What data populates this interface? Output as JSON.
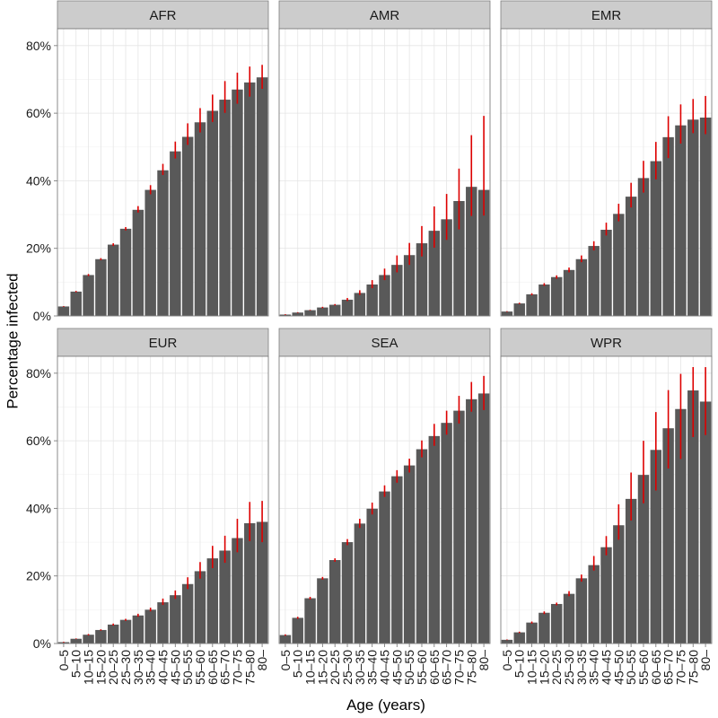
{
  "chart_data": {
    "type": "bar",
    "xlabel": "Age (years)",
    "ylabel": "Percentage infected",
    "ylim": [
      0,
      85
    ],
    "yticks": [
      0,
      20,
      40,
      60,
      80
    ],
    "ytick_labels": [
      "0%",
      "20%",
      "40%",
      "60%",
      "80%"
    ],
    "categories": [
      "0–5",
      "5–10",
      "10–15",
      "15–20",
      "20–25",
      "25–30",
      "30–35",
      "35–40",
      "40–45",
      "45–50",
      "50–55",
      "55–60",
      "60–65",
      "65–70",
      "70–75",
      "75–80",
      "80–"
    ],
    "grid": true,
    "error_bar_color": "#dd0000",
    "bar_color": "#595959",
    "panels": [
      {
        "name": "AFR",
        "values": [
          2.8,
          7.2,
          12.1,
          16.8,
          21.1,
          25.8,
          31.4,
          37.3,
          43.1,
          48.7,
          53.0,
          57.3,
          60.7,
          64.0,
          67.0,
          69.1,
          70.6
        ],
        "lower": [
          2.7,
          7.0,
          11.8,
          16.5,
          20.7,
          25.3,
          30.6,
          36.0,
          41.7,
          46.6,
          50.6,
          54.3,
          57.4,
          60.1,
          62.8,
          64.9,
          67.2
        ],
        "upper": [
          2.9,
          7.4,
          12.4,
          17.1,
          21.5,
          26.3,
          32.5,
          38.7,
          45.0,
          51.6,
          57.0,
          61.5,
          65.5,
          69.5,
          72.0,
          73.8,
          74.3
        ]
      },
      {
        "name": "AMR",
        "values": [
          0.4,
          1.0,
          1.7,
          2.5,
          3.3,
          4.8,
          6.8,
          9.3,
          12.1,
          15.1,
          18.0,
          21.5,
          25.2,
          28.6,
          34.0,
          38.2,
          37.3
        ],
        "lower": [
          0.3,
          0.9,
          1.6,
          2.3,
          3.1,
          4.4,
          6.2,
          8.2,
          10.6,
          12.9,
          15.1,
          17.6,
          20.2,
          22.5,
          25.6,
          29.6,
          29.7
        ],
        "upper": [
          0.5,
          1.1,
          1.8,
          2.7,
          3.5,
          5.3,
          7.6,
          10.6,
          14.0,
          17.9,
          21.6,
          26.6,
          32.4,
          36.1,
          43.6,
          53.5,
          59.2
        ]
      },
      {
        "name": "EMR",
        "values": [
          1.3,
          3.7,
          6.4,
          9.3,
          11.5,
          13.6,
          16.8,
          20.7,
          25.5,
          30.2,
          35.3,
          40.8,
          45.8,
          52.9,
          56.4,
          58.1,
          58.7
        ],
        "lower": [
          1.2,
          3.5,
          6.1,
          8.9,
          11.0,
          12.9,
          15.9,
          19.4,
          23.8,
          28.0,
          32.1,
          36.5,
          40.4,
          46.7,
          51.0,
          54.1,
          53.8
        ],
        "upper": [
          1.4,
          3.9,
          6.7,
          9.7,
          12.0,
          14.3,
          17.9,
          22.1,
          27.6,
          33.2,
          39.4,
          45.9,
          51.5,
          59.1,
          62.6,
          64.2,
          65.1
        ]
      },
      {
        "name": "EUR",
        "values": [
          0.4,
          1.4,
          2.6,
          4.0,
          5.6,
          7.0,
          8.3,
          10.0,
          12.2,
          14.3,
          17.6,
          21.4,
          25.2,
          27.5,
          31.2,
          35.6,
          36.0
        ],
        "lower": [
          0.3,
          1.3,
          2.4,
          3.8,
          5.3,
          6.7,
          7.9,
          9.5,
          11.4,
          13.2,
          16.1,
          19.2,
          22.3,
          23.9,
          27.0,
          30.3,
          30.0
        ],
        "upper": [
          0.5,
          1.5,
          2.8,
          4.2,
          5.9,
          7.3,
          8.8,
          10.6,
          13.3,
          15.7,
          19.6,
          24.1,
          28.9,
          31.9,
          36.9,
          41.9,
          42.2
        ]
      },
      {
        "name": "SEA",
        "values": [
          2.5,
          7.6,
          13.4,
          19.3,
          24.7,
          30.0,
          35.5,
          39.9,
          45.0,
          49.5,
          52.7,
          57.5,
          61.4,
          65.3,
          68.9,
          72.3,
          74.0
        ],
        "lower": [
          2.3,
          7.3,
          13.0,
          18.9,
          24.2,
          29.1,
          34.2,
          38.2,
          43.4,
          47.6,
          50.6,
          55.1,
          58.5,
          61.8,
          65.1,
          68.6,
          69.1
        ],
        "upper": [
          2.7,
          7.9,
          13.8,
          19.7,
          25.2,
          30.9,
          36.9,
          41.7,
          46.8,
          51.3,
          54.7,
          60.1,
          65.0,
          68.9,
          73.3,
          77.4,
          79.2
        ]
      },
      {
        "name": "WPR",
        "values": [
          1.1,
          3.3,
          6.2,
          9.1,
          11.7,
          14.7,
          19.3,
          23.2,
          28.5,
          35.0,
          42.8,
          49.9,
          57.3,
          63.7,
          69.4,
          74.9,
          71.6
        ],
        "lower": [
          1.0,
          3.1,
          5.9,
          8.7,
          11.3,
          14.0,
          18.3,
          21.6,
          26.1,
          30.7,
          36.4,
          41.5,
          45.3,
          51.8,
          54.6,
          61.1,
          61.7
        ],
        "upper": [
          1.2,
          3.5,
          6.5,
          9.5,
          12.1,
          15.5,
          20.4,
          25.9,
          31.8,
          41.2,
          50.6,
          60.0,
          68.5,
          75.0,
          79.8,
          81.8,
          81.8
        ]
      }
    ]
  }
}
